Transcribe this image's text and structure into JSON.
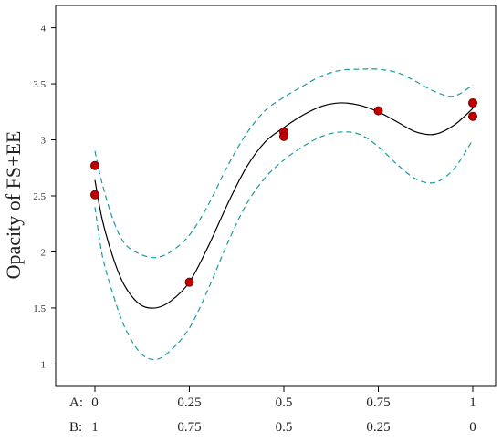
{
  "chart_data": {
    "type": "line",
    "ylabel": "Opacity of FS+EE",
    "xlim": [
      0,
      1
    ],
    "ylim": [
      0.8,
      4.2
    ],
    "grid": false,
    "y_ticks": [
      1,
      1.5,
      2,
      2.5,
      3,
      3.5,
      4
    ],
    "y_tick_labels": [
      "1",
      "1.5",
      "2",
      "2.5",
      "3",
      "3.5",
      "4"
    ],
    "x_ticks": [
      0,
      0.25,
      0.5,
      0.75,
      1
    ],
    "x_axis_rows": [
      {
        "name": "A:",
        "labels": [
          "0",
          "0.25",
          "0.5",
          "0.75",
          "1"
        ]
      },
      {
        "name": "B:",
        "labels": [
          "1",
          "0.75",
          "0.5",
          "0.25",
          "0"
        ]
      }
    ],
    "fit_curve": {
      "x": [
        0,
        0.02,
        0.05,
        0.08,
        0.12,
        0.16,
        0.2,
        0.25,
        0.3,
        0.35,
        0.4,
        0.45,
        0.5,
        0.55,
        0.6,
        0.65,
        0.7,
        0.75,
        0.8,
        0.85,
        0.9,
        0.95,
        1
      ],
      "y": [
        2.64,
        2.28,
        1.93,
        1.69,
        1.53,
        1.5,
        1.56,
        1.73,
        2.05,
        2.42,
        2.75,
        2.98,
        3.11,
        3.22,
        3.3,
        3.33,
        3.31,
        3.25,
        3.16,
        3.07,
        3.05,
        3.13,
        3.28
      ]
    },
    "upper_band": {
      "x": [
        0,
        0.02,
        0.05,
        0.08,
        0.12,
        0.16,
        0.2,
        0.25,
        0.3,
        0.35,
        0.4,
        0.45,
        0.5,
        0.55,
        0.6,
        0.65,
        0.7,
        0.75,
        0.8,
        0.85,
        0.9,
        0.95,
        1
      ],
      "y": [
        2.9,
        2.6,
        2.27,
        2.07,
        1.98,
        1.95,
        2.0,
        2.15,
        2.42,
        2.76,
        3.05,
        3.26,
        3.38,
        3.48,
        3.57,
        3.62,
        3.63,
        3.63,
        3.6,
        3.52,
        3.43,
        3.39,
        3.49
      ]
    },
    "lower_band": {
      "x": [
        0,
        0.02,
        0.05,
        0.08,
        0.12,
        0.16,
        0.2,
        0.25,
        0.3,
        0.35,
        0.4,
        0.45,
        0.5,
        0.55,
        0.6,
        0.65,
        0.7,
        0.75,
        0.8,
        0.85,
        0.9,
        0.95,
        1
      ],
      "y": [
        2.4,
        1.96,
        1.6,
        1.32,
        1.1,
        1.04,
        1.12,
        1.32,
        1.67,
        2.07,
        2.42,
        2.66,
        2.82,
        2.94,
        3.03,
        3.07,
        3.05,
        2.94,
        2.78,
        2.65,
        2.62,
        2.74,
        3.0
      ]
    },
    "points": [
      {
        "x": 0,
        "y": 2.77
      },
      {
        "x": 0,
        "y": 2.51
      },
      {
        "x": 0.25,
        "y": 1.73
      },
      {
        "x": 0.5,
        "y": 3.07
      },
      {
        "x": 0.5,
        "y": 3.03
      },
      {
        "x": 0.75,
        "y": 3.26
      },
      {
        "x": 1,
        "y": 3.33
      },
      {
        "x": 1,
        "y": 3.21
      }
    ],
    "colors": {
      "fit_line": "#000000",
      "band": "#1a9aa0",
      "point_fill": "#c00000",
      "point_stroke": "#800000",
      "frame": "#000000"
    }
  }
}
